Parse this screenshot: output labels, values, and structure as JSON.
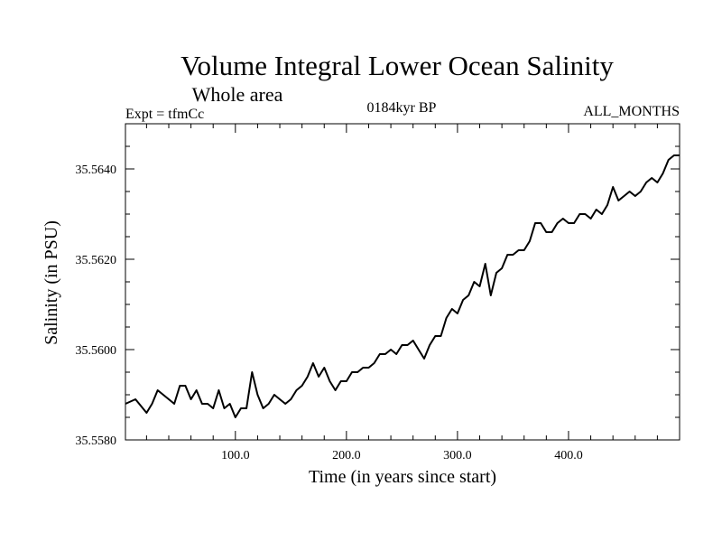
{
  "chart_data": {
    "type": "line",
    "title": "Volume Integral Lower Ocean Salinity",
    "subtitle": "Whole area",
    "annotations": {
      "left": "Expt = tfmCc",
      "center": "0184kyr BP",
      "right": "ALL_MONTHS"
    },
    "xlabel": "Time (in years since start)",
    "ylabel": "Salinity (in PSU)",
    "xlim": [
      1,
      500
    ],
    "ylim": [
      35.558,
      35.565
    ],
    "xticks": [
      100,
      200,
      300,
      400
    ],
    "xtick_labels": [
      "100.0",
      "200.0",
      "300.0",
      "400.0"
    ],
    "yticks": [
      35.558,
      35.56,
      35.562,
      35.564
    ],
    "ytick_labels": [
      "35.5580",
      "35.5600",
      "35.5620",
      "35.5640"
    ],
    "grid": false,
    "series": [
      {
        "name": "Salinity",
        "x": [
          1,
          10,
          20,
          25,
          30,
          40,
          45,
          50,
          55,
          60,
          65,
          70,
          75,
          80,
          85,
          90,
          95,
          100,
          105,
          110,
          115,
          120,
          125,
          130,
          135,
          140,
          145,
          150,
          155,
          160,
          165,
          170,
          175,
          180,
          185,
          190,
          195,
          200,
          205,
          210,
          215,
          220,
          225,
          230,
          235,
          240,
          245,
          250,
          255,
          260,
          265,
          270,
          275,
          280,
          285,
          290,
          295,
          300,
          305,
          310,
          315,
          320,
          325,
          330,
          335,
          340,
          345,
          350,
          355,
          360,
          365,
          370,
          375,
          380,
          385,
          390,
          395,
          400,
          405,
          410,
          415,
          420,
          425,
          430,
          435,
          440,
          445,
          450,
          455,
          460,
          465,
          470,
          475,
          480,
          485,
          490,
          495,
          500
        ],
        "values": [
          35.5588,
          35.5589,
          35.5586,
          35.5588,
          35.5591,
          35.5589,
          35.5588,
          35.5592,
          35.5592,
          35.5589,
          35.5591,
          35.5588,
          35.5588,
          35.5587,
          35.5591,
          35.5587,
          35.5588,
          35.5585,
          35.5587,
          35.5587,
          35.5595,
          35.559,
          35.5587,
          35.5588,
          35.559,
          35.5589,
          35.5588,
          35.5589,
          35.5591,
          35.5592,
          35.5594,
          35.5597,
          35.5594,
          35.5596,
          35.5593,
          35.5591,
          35.5593,
          35.5593,
          35.5595,
          35.5595,
          35.5596,
          35.5596,
          35.5597,
          35.5599,
          35.5599,
          35.56,
          35.5599,
          35.5601,
          35.5601,
          35.5602,
          35.56,
          35.5598,
          35.5601,
          35.5603,
          35.5603,
          35.5607,
          35.5609,
          35.5608,
          35.5611,
          35.5612,
          35.5615,
          35.5614,
          35.5619,
          35.5612,
          35.5617,
          35.5618,
          35.5621,
          35.5621,
          35.5622,
          35.5622,
          35.5624,
          35.5628,
          35.5628,
          35.5626,
          35.5626,
          35.5628,
          35.5629,
          35.5628,
          35.5628,
          35.563,
          35.563,
          35.5629,
          35.5631,
          35.563,
          35.5632,
          35.5636,
          35.5633,
          35.5634,
          35.5635,
          35.5634,
          35.5635,
          35.5637,
          35.5638,
          35.5637,
          35.5639,
          35.5642,
          35.5643,
          35.5643
        ]
      }
    ]
  }
}
